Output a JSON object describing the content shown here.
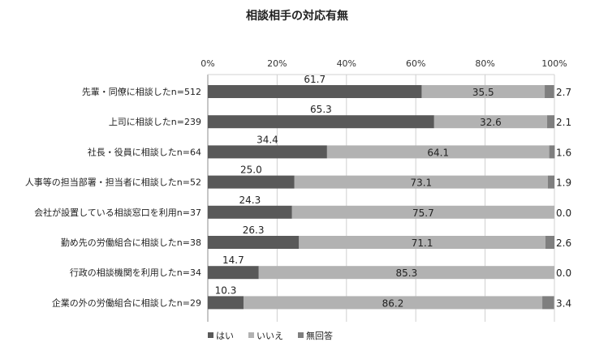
{
  "chart_data": {
    "type": "bar",
    "orientation": "horizontal",
    "stacked": "percent",
    "title": "相談相手の対応有無",
    "xlim": [
      0,
      100
    ],
    "x_ticks": [
      "0%",
      "20%",
      "40%",
      "60%",
      "80%",
      "100%"
    ],
    "grid": true,
    "legend_position": "bottom-left",
    "categories": [
      "先輩・同僚に相談したn=512",
      "上司に相談したn=239",
      "社長・役員に相談したn=64",
      "人事等の担当部署・担当者に相談したn=52",
      "会社が設置している相談窓口を利用n=37",
      "勤め先の労働組合に相談したn=38",
      "行政の相談機関を利用したn=34",
      "企業の外の労働組合に相談したn=29"
    ],
    "series": [
      {
        "name": "はい",
        "color": "#595959",
        "values": [
          61.7,
          65.3,
          34.4,
          25.0,
          24.3,
          26.3,
          14.7,
          10.3
        ],
        "labels": [
          "61.7",
          "65.3",
          "34.4",
          "25.0",
          "24.3",
          "26.3",
          "14.7",
          "10.3"
        ]
      },
      {
        "name": "いいえ",
        "color": "#b2b2b2",
        "values": [
          35.5,
          32.6,
          64.1,
          73.1,
          75.7,
          71.1,
          85.3,
          86.2
        ],
        "labels": [
          "35.5",
          "32.6",
          "64.1",
          "73.1",
          "75.7",
          "71.1",
          "85.3",
          "86.2"
        ]
      },
      {
        "name": "無回答",
        "color": "#7f7f7f",
        "values": [
          2.7,
          2.1,
          1.6,
          1.9,
          0.0,
          2.6,
          0.0,
          3.4
        ],
        "labels": [
          "2.7",
          "2.1",
          "1.6",
          "1.9",
          "0.0",
          "2.6",
          "0.0",
          "3.4"
        ]
      }
    ]
  }
}
